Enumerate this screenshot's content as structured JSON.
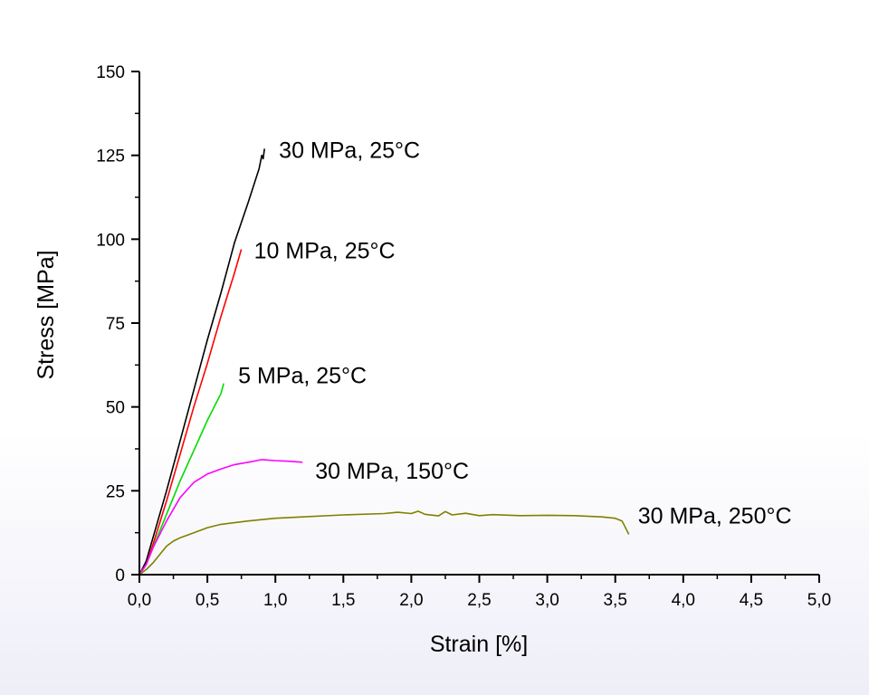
{
  "chart_data": {
    "type": "line",
    "xlabel": "Strain [%]",
    "ylabel": "Stress [MPa]",
    "xlim": [
      0,
      5
    ],
    "ylim": [
      0,
      150
    ],
    "xticks": [
      "0,0",
      "0,5",
      "1,0",
      "1,5",
      "2,0",
      "2,5",
      "3,0",
      "3,5",
      "4,0",
      "4,5",
      "5,0"
    ],
    "yticks": [
      "0",
      "25",
      "50",
      "75",
      "100",
      "125",
      "150"
    ],
    "grid": false,
    "series": [
      {
        "name": "30 MPa, 25°C",
        "color": "#000000",
        "points": [
          [
            0,
            0
          ],
          [
            0.05,
            4
          ],
          [
            0.1,
            11
          ],
          [
            0.2,
            25
          ],
          [
            0.3,
            40
          ],
          [
            0.4,
            55
          ],
          [
            0.5,
            70
          ],
          [
            0.6,
            84
          ],
          [
            0.7,
            99
          ],
          [
            0.8,
            111
          ],
          [
            0.88,
            121
          ],
          [
            0.9,
            125
          ],
          [
            0.91,
            124
          ],
          [
            0.92,
            127
          ]
        ]
      },
      {
        "name": "10 MPa, 25°C",
        "color": "#ff0000",
        "points": [
          [
            0,
            0
          ],
          [
            0.05,
            3
          ],
          [
            0.1,
            9
          ],
          [
            0.2,
            22
          ],
          [
            0.3,
            36
          ],
          [
            0.4,
            50
          ],
          [
            0.5,
            63
          ],
          [
            0.6,
            77
          ],
          [
            0.7,
            90
          ],
          [
            0.75,
            97
          ]
        ]
      },
      {
        "name": "5 MPa, 25°C",
        "color": "#00dd00",
        "points": [
          [
            0,
            0
          ],
          [
            0.05,
            3
          ],
          [
            0.1,
            8
          ],
          [
            0.2,
            18
          ],
          [
            0.3,
            28
          ],
          [
            0.4,
            37
          ],
          [
            0.5,
            46
          ],
          [
            0.6,
            54
          ],
          [
            0.62,
            57
          ]
        ]
      },
      {
        "name": "30 MPa, 150°C",
        "color": "#ff00ff",
        "points": [
          [
            0,
            0
          ],
          [
            0.05,
            3
          ],
          [
            0.1,
            8
          ],
          [
            0.2,
            16
          ],
          [
            0.3,
            23
          ],
          [
            0.4,
            27.5
          ],
          [
            0.5,
            30
          ],
          [
            0.6,
            31.5
          ],
          [
            0.7,
            32.8
          ],
          [
            0.8,
            33.5
          ],
          [
            0.9,
            34.3
          ],
          [
            1.0,
            34
          ],
          [
            1.1,
            33.8
          ],
          [
            1.2,
            33.5
          ]
        ]
      },
      {
        "name": "30 MPa, 250°C",
        "color": "#808000",
        "points": [
          [
            0,
            0
          ],
          [
            0.05,
            1.5
          ],
          [
            0.1,
            3.5
          ],
          [
            0.15,
            6
          ],
          [
            0.2,
            8.5
          ],
          [
            0.25,
            10
          ],
          [
            0.3,
            11
          ],
          [
            0.4,
            12.5
          ],
          [
            0.5,
            14
          ],
          [
            0.6,
            15
          ],
          [
            0.8,
            16
          ],
          [
            1.0,
            16.8
          ],
          [
            1.2,
            17.2
          ],
          [
            1.5,
            17.8
          ],
          [
            1.8,
            18.2
          ],
          [
            1.9,
            18.6
          ],
          [
            2.0,
            18.2
          ],
          [
            2.05,
            18.9
          ],
          [
            2.1,
            18
          ],
          [
            2.2,
            17.5
          ],
          [
            2.25,
            18.8
          ],
          [
            2.3,
            17.8
          ],
          [
            2.4,
            18.3
          ],
          [
            2.5,
            17.6
          ],
          [
            2.6,
            17.9
          ],
          [
            2.8,
            17.6
          ],
          [
            3.0,
            17.7
          ],
          [
            3.2,
            17.6
          ],
          [
            3.4,
            17.2
          ],
          [
            3.5,
            16.8
          ],
          [
            3.55,
            16
          ],
          [
            3.6,
            12
          ]
        ]
      }
    ]
  }
}
